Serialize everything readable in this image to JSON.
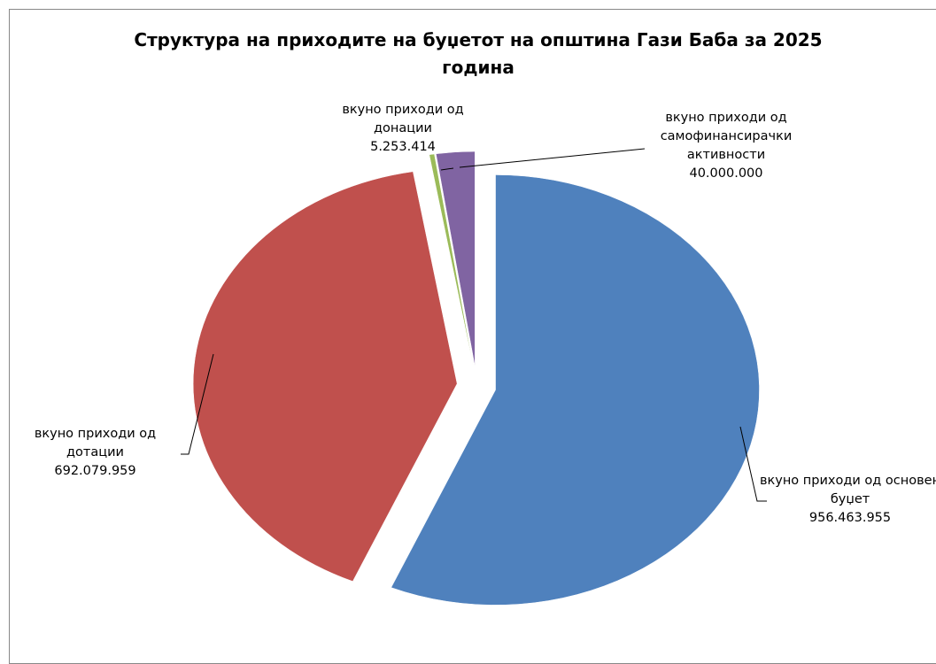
{
  "chart_data": {
    "type": "pie",
    "title": "Структура на приходите на буџетот на општина Гази Баба за 2025 година",
    "categories": [
      "вкуно приходи од основен буџет",
      "вкуно приходи од дотации",
      "вкуно приходи од донации",
      "вкуно приходи од самофинансирачки активности"
    ],
    "values": [
      956463955,
      692079959,
      5253414,
      40000000
    ],
    "value_labels": [
      "956.463.955",
      "692.079.959",
      "5.253.414",
      "40.000.000"
    ],
    "colors": [
      "#4f81bd",
      "#c0504d",
      "#9bbb59",
      "#8064a2"
    ]
  }
}
